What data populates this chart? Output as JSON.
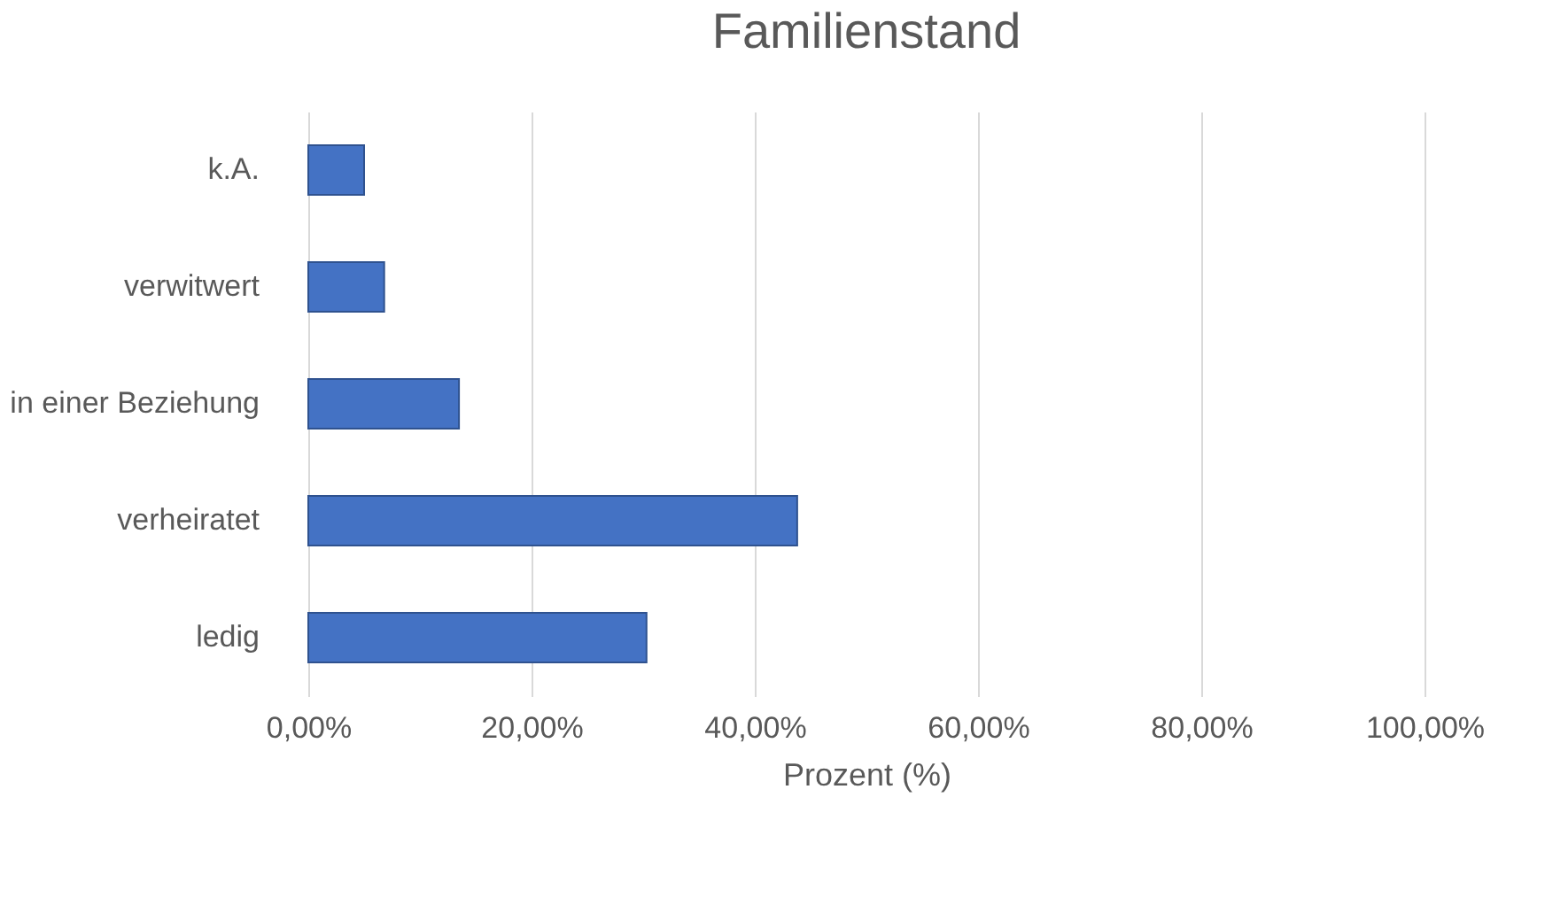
{
  "chart_data": {
    "type": "bar",
    "orientation": "horizontal",
    "title": "Familienstand",
    "xlabel": "Prozent (%)",
    "categories": [
      "k.A.",
      "verwitwert",
      "in einer Beziehung",
      "verheiratet",
      "ledig"
    ],
    "values": [
      5.0,
      6.8,
      13.5,
      43.8,
      30.3
    ],
    "color": "#4472c4",
    "xlim": [
      0,
      100
    ],
    "xticks": [
      {
        "value": 0,
        "label": "0,00%"
      },
      {
        "value": 20,
        "label": "20,00%"
      },
      {
        "value": 40,
        "label": "40,00%"
      },
      {
        "value": 60,
        "label": "60,00%"
      },
      {
        "value": 80,
        "label": "80,00%"
      },
      {
        "value": 100,
        "label": "100,00%"
      }
    ],
    "grid": "x"
  }
}
